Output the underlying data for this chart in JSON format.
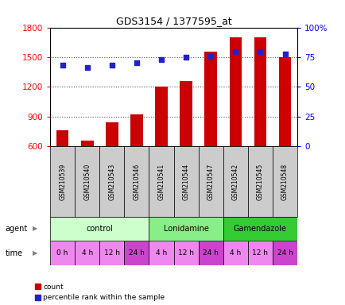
{
  "title": "GDS3154 / 1377595_at",
  "samples": [
    "GSM210539",
    "GSM210540",
    "GSM210543",
    "GSM210546",
    "GSM210541",
    "GSM210544",
    "GSM210547",
    "GSM210542",
    "GSM210545",
    "GSM210548"
  ],
  "counts": [
    760,
    655,
    840,
    925,
    1200,
    1260,
    1555,
    1700,
    1700,
    1500
  ],
  "percentiles": [
    68,
    66,
    68,
    70,
    73,
    75,
    76,
    80,
    80,
    78
  ],
  "ylim_left": [
    600,
    1800
  ],
  "ylim_right": [
    0,
    100
  ],
  "yticks_left": [
    600,
    900,
    1200,
    1500,
    1800
  ],
  "yticks_right": [
    0,
    25,
    50,
    75,
    100
  ],
  "ytick_labels_right": [
    "0",
    "25",
    "50",
    "75",
    "100%"
  ],
  "bar_color": "#cc0000",
  "dot_color": "#2222cc",
  "agent_groups": [
    {
      "label": "control",
      "start": 0,
      "end": 4,
      "color": "#ccffcc"
    },
    {
      "label": "Lonidamine",
      "start": 4,
      "end": 7,
      "color": "#88ee88"
    },
    {
      "label": "Gamendazole",
      "start": 7,
      "end": 10,
      "color": "#33cc33"
    }
  ],
  "time_labels": [
    "0 h",
    "4 h",
    "12 h",
    "24 h",
    "4 h",
    "12 h",
    "24 h",
    "4 h",
    "12 h",
    "24 h"
  ],
  "time_color_light": "#ee88ee",
  "time_color_dark": "#cc44cc",
  "time_highlight": [
    3,
    6,
    9
  ],
  "sample_bg_color": "#cccccc",
  "dotted_line_color": "#555555",
  "background_color": "#ffffff"
}
